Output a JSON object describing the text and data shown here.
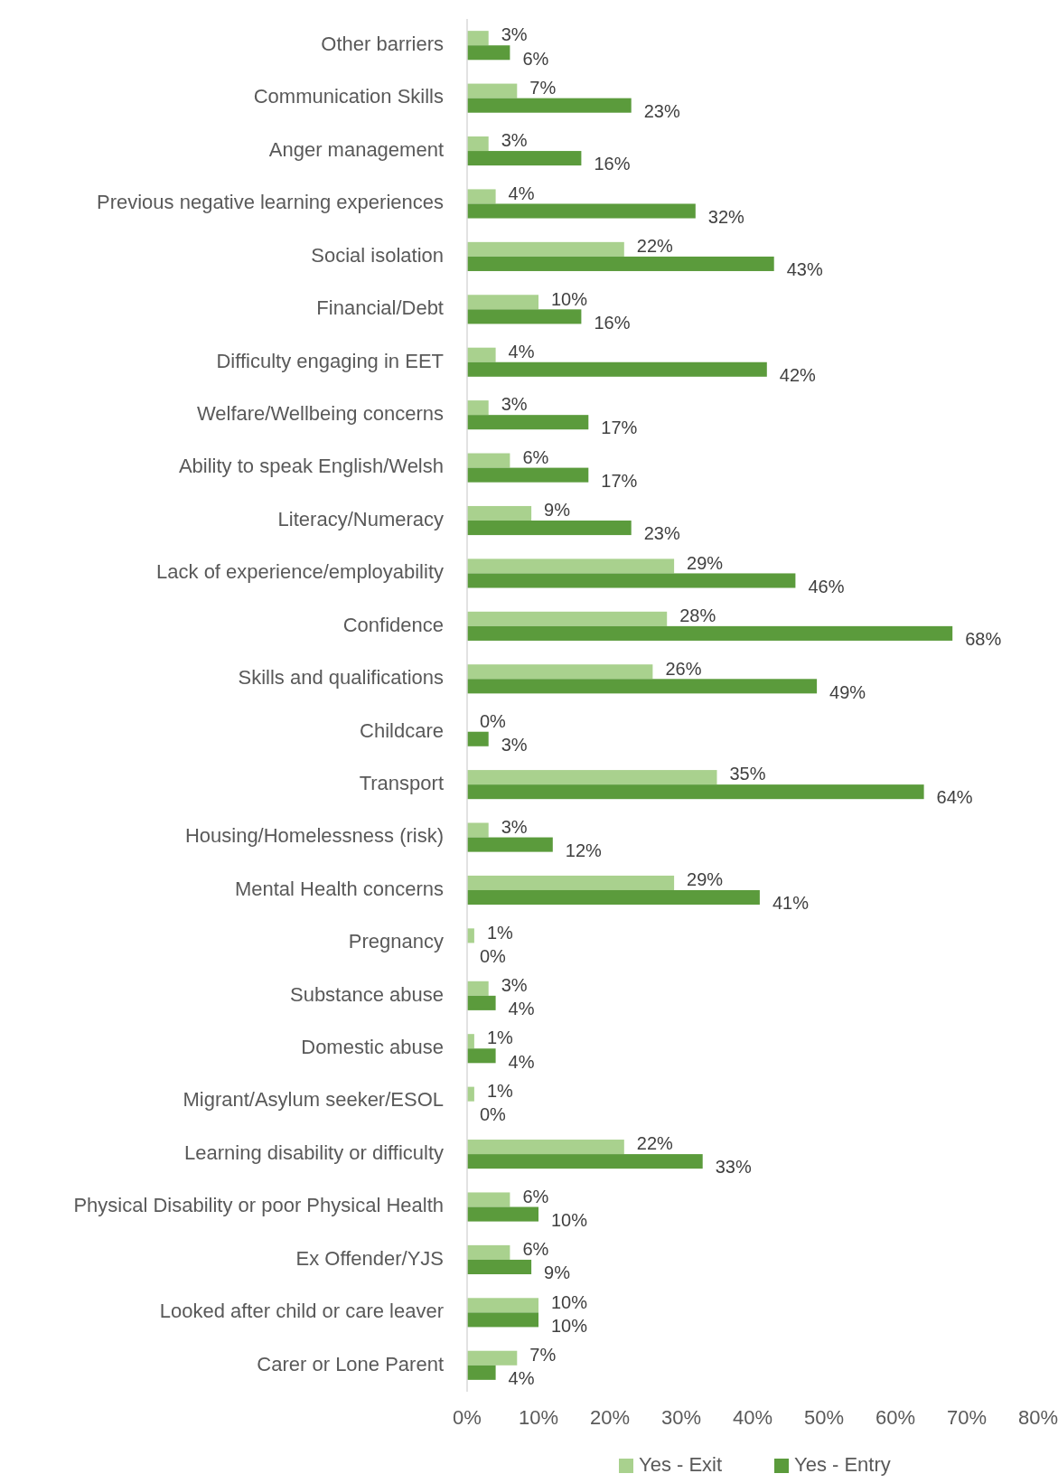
{
  "chart_data": {
    "type": "bar",
    "orientation": "horizontal",
    "categories": [
      "Other barriers",
      "Communication Skills",
      "Anger management",
      "Previous negative learning experiences",
      "Social isolation",
      "Financial/Debt",
      "Difficulty engaging in EET",
      "Welfare/Wellbeing concerns",
      "Ability to speak English/Welsh",
      "Literacy/Numeracy",
      "Lack of experience/employability",
      "Confidence",
      "Skills and qualifications",
      "Childcare",
      "Transport",
      "Housing/Homelessness (risk)",
      "Mental Health concerns",
      "Pregnancy",
      "Substance abuse",
      "Domestic abuse",
      "Migrant/Asylum seeker/ESOL",
      "Learning disability or difficulty",
      "Physical Disability or poor Physical Health",
      "Ex Offender/YJS",
      "Looked after child or care leaver",
      "Carer or Lone Parent"
    ],
    "series": [
      {
        "name": "Yes - Exit",
        "color": "#a9d18e",
        "values": [
          3,
          7,
          3,
          4,
          22,
          10,
          4,
          3,
          6,
          9,
          29,
          28,
          26,
          0,
          35,
          3,
          29,
          1,
          3,
          1,
          1,
          22,
          6,
          6,
          10,
          7
        ],
        "value_labels": [
          "3%",
          "7%",
          "3%",
          "4%",
          "22%",
          "10%",
          "4%",
          "3%",
          "6%",
          "9%",
          "29%",
          "28%",
          "26%",
          "0%",
          "35%",
          "3%",
          "29%",
          "1%",
          "3%",
          "1%",
          "1%",
          "22%",
          "6%",
          "6%",
          "10%",
          "7%"
        ]
      },
      {
        "name": "Yes - Entry",
        "color": "#5b9b3c",
        "values": [
          6,
          23,
          16,
          32,
          43,
          16,
          42,
          17,
          17,
          23,
          46,
          68,
          49,
          3,
          64,
          12,
          41,
          0,
          4,
          4,
          0,
          33,
          10,
          9,
          10,
          4
        ],
        "value_labels": [
          "6%",
          "23%",
          "16%",
          "32%",
          "43%",
          "16%",
          "42%",
          "17%",
          "17%",
          "23%",
          "46%",
          "68%",
          "49%",
          "3%",
          "64%",
          "12%",
          "41%",
          "0%",
          "4%",
          "4%",
          "0%",
          "33%",
          "10%",
          "9%",
          "10%",
          "4%"
        ]
      }
    ],
    "xlim": [
      0,
      80
    ],
    "xticks": [
      {
        "value": 0,
        "label": "0%"
      },
      {
        "value": 10,
        "label": "10%"
      },
      {
        "value": 20,
        "label": "20%"
      },
      {
        "value": 30,
        "label": "30%"
      },
      {
        "value": 40,
        "label": "40%"
      },
      {
        "value": 50,
        "label": "50%"
      },
      {
        "value": 60,
        "label": "60%"
      },
      {
        "value": 70,
        "label": "70%"
      },
      {
        "value": 80,
        "label": "80%"
      }
    ],
    "grid": false,
    "legend": "bottom"
  }
}
